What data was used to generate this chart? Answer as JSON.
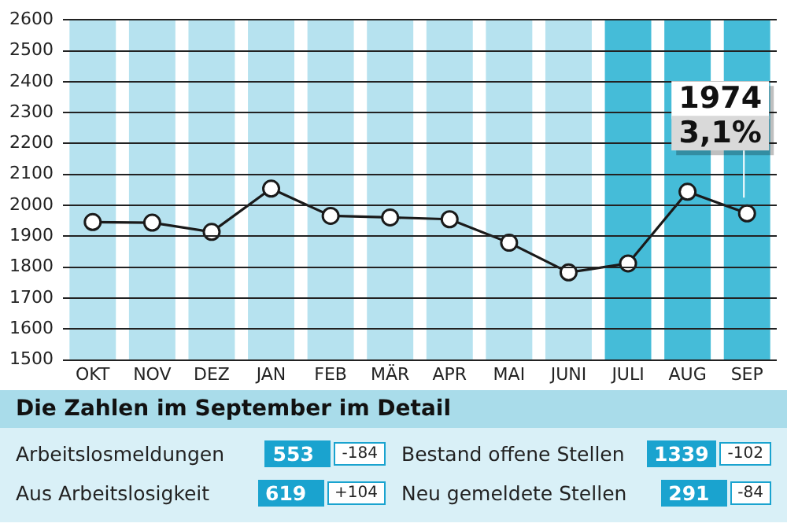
{
  "chart_data": [
    {
      "type": "line",
      "categories": [
        "OKT",
        "NOV",
        "DEZ",
        "JAN",
        "FEB",
        "MÄR",
        "APR",
        "MAI",
        "JUNI",
        "JULI",
        "AUG",
        "SEP"
      ],
      "series": [
        {
          "color": "#1a1a1a",
          "values": [
            1946,
            1944,
            1914,
            2054,
            1966,
            1961,
            1955,
            1879,
            1783,
            1812,
            2044,
            1974
          ],
          "value_labels": [
            null,
            null,
            null,
            null,
            null,
            null,
            null,
            null,
            null,
            null,
            null,
            "1974"
          ]
        }
      ],
      "marker": "circle",
      "ylim": [
        1500,
        2600
      ],
      "yticks": [
        1500,
        1600,
        1700,
        1800,
        1900,
        2000,
        2100,
        2200,
        2300,
        2400,
        2500,
        2600
      ],
      "grid": "y",
      "bands": [
        {
          "axis": "x",
          "from": "OKT",
          "to": "OKT",
          "color": "#b6e2ef"
        },
        {
          "axis": "x",
          "from": "NOV",
          "to": "NOV",
          "color": "#b6e2ef"
        },
        {
          "axis": "x",
          "from": "DEZ",
          "to": "DEZ",
          "color": "#b6e2ef"
        },
        {
          "axis": "x",
          "from": "JAN",
          "to": "JAN",
          "color": "#b6e2ef"
        },
        {
          "axis": "x",
          "from": "FEB",
          "to": "FEB",
          "color": "#b6e2ef"
        },
        {
          "axis": "x",
          "from": "MÄR",
          "to": "MÄR",
          "color": "#b6e2ef"
        },
        {
          "axis": "x",
          "from": "APR",
          "to": "APR",
          "color": "#b6e2ef"
        },
        {
          "axis": "x",
          "from": "MAI",
          "to": "MAI",
          "color": "#b6e2ef"
        },
        {
          "axis": "x",
          "from": "JUNI",
          "to": "JUNI",
          "color": "#b6e2ef"
        },
        {
          "axis": "x",
          "from": "JULI",
          "to": "JULI",
          "color": "#45bcd8"
        },
        {
          "axis": "x",
          "from": "AUG",
          "to": "AUG",
          "color": "#45bcd8"
        },
        {
          "axis": "x",
          "from": "SEP",
          "to": "SEP",
          "color": "#45bcd8"
        }
      ],
      "annotations": [
        "3,1%"
      ]
    },
    {
      "type": "other",
      "title": "Die Zahlen im September im Detail",
      "annotations": [
        "Arbeitslosmeldungen",
        "553",
        "-184",
        "Bestand offene Stellen",
        "1339",
        "-102",
        "Aus Arbeitslosigkeit",
        "619",
        "+104",
        "Neu gemeldete Stellen",
        "291",
        "-84"
      ]
    }
  ]
}
